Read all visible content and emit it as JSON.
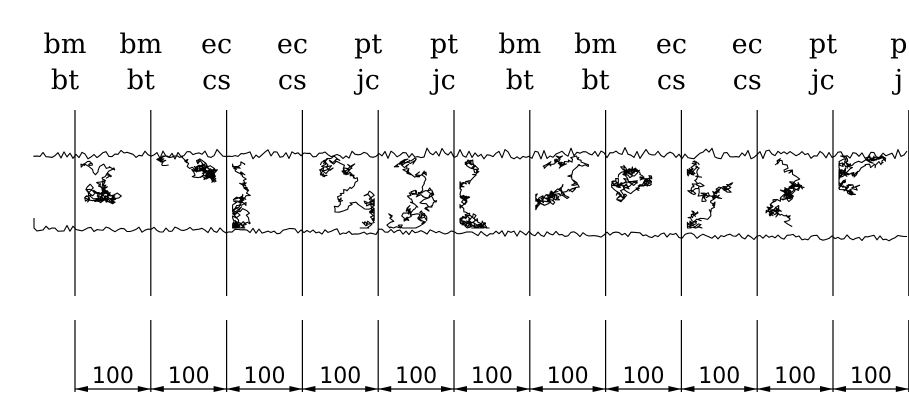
{
  "columns": [
    {
      "top": "bm",
      "bottom": "bt"
    },
    {
      "top": "bm",
      "bottom": "bt"
    },
    {
      "top": "ec",
      "bottom": "cs"
    },
    {
      "top": "ec",
      "bottom": "cs"
    },
    {
      "top": "pt",
      "bottom": "jc"
    },
    {
      "top": "pt",
      "bottom": "jc"
    },
    {
      "top": "bm",
      "bottom": "bt"
    },
    {
      "top": "bm",
      "bottom": "bt"
    },
    {
      "top": "ec",
      "bottom": "cs"
    },
    {
      "top": "ec",
      "bottom": "cs"
    },
    {
      "top": "pt",
      "bottom": "jc"
    },
    {
      "top": "p",
      "bottom": "j"
    }
  ],
  "dimensions": [
    "100",
    "100",
    "100",
    "100",
    "100",
    "100",
    "100",
    "100",
    "100",
    "100",
    "100"
  ]
}
